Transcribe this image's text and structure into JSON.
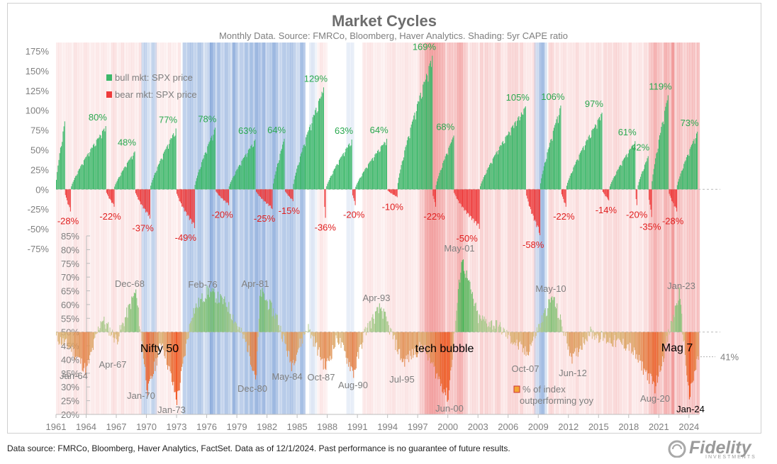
{
  "chart_data": {
    "type": "bar",
    "title": "Market Cycles",
    "subtitle": "Monthly Data.  Source:  FMRCo, Bloomberg, Haver Analytics.  Shading: 5yr CAPE ratio",
    "x_ticks": [
      "1961",
      "1964",
      "1967",
      "1970",
      "1973",
      "1976",
      "1979",
      "1982",
      "1985",
      "1988",
      "1991",
      "1994",
      "1997",
      "2000",
      "2003",
      "2006",
      "2009",
      "2012",
      "2015",
      "2018",
      "2021",
      "2024"
    ],
    "x_range": [
      1961,
      2025
    ],
    "upper_panel": {
      "y_ticks": [
        "175%",
        "150%",
        "125%",
        "100%",
        "75%",
        "50%",
        "25%",
        "0%",
        "-25%",
        "-50%",
        "-75%"
      ],
      "ylim": [
        -75,
        175
      ],
      "legend": [
        {
          "label": "bull mkt: SPX price",
          "color": "#3cb86a"
        },
        {
          "label": "bear mkt: SPX price",
          "color": "#ee3b3b"
        }
      ],
      "bull_markets": [
        {
          "start": 1961.0,
          "end": 1961.9,
          "peak": 86,
          "label": ""
        },
        {
          "start": 1962.5,
          "end": 1966.0,
          "peak": 80,
          "label": "80%"
        },
        {
          "start": 1966.8,
          "end": 1968.9,
          "peak": 48,
          "label": "48%"
        },
        {
          "start": 1970.4,
          "end": 1973.0,
          "peak": 77,
          "label": "77%"
        },
        {
          "start": 1974.8,
          "end": 1976.9,
          "peak": 78,
          "label": "78%"
        },
        {
          "start": 1978.2,
          "end": 1980.9,
          "peak": 63,
          "label": "63%"
        },
        {
          "start": 1982.6,
          "end": 1983.8,
          "peak": 64,
          "label": "64%"
        },
        {
          "start": 1984.6,
          "end": 1987.7,
          "peak": 129,
          "label": "129%"
        },
        {
          "start": 1987.9,
          "end": 1990.5,
          "peak": 63,
          "label": "63%"
        },
        {
          "start": 1990.8,
          "end": 1994.0,
          "peak": 64,
          "label": "64%"
        },
        {
          "start": 1995.0,
          "end": 1998.5,
          "peak": 169,
          "label": "169%"
        },
        {
          "start": 1998.8,
          "end": 2000.6,
          "peak": 68,
          "label": "68%"
        },
        {
          "start": 2003.2,
          "end": 2007.8,
          "peak": 105,
          "label": "105%"
        },
        {
          "start": 2009.2,
          "end": 2011.3,
          "peak": 106,
          "label": "106%"
        },
        {
          "start": 2011.8,
          "end": 2015.4,
          "peak": 97,
          "label": "97%"
        },
        {
          "start": 2016.1,
          "end": 2018.7,
          "peak": 61,
          "label": "61%"
        },
        {
          "start": 2018.9,
          "end": 2020.0,
          "peak": 42,
          "label": "42%"
        },
        {
          "start": 2020.3,
          "end": 2022.0,
          "peak": 119,
          "label": "119%"
        },
        {
          "start": 2022.8,
          "end": 2024.9,
          "peak": 73,
          "label": "73%"
        }
      ],
      "bear_markets": [
        {
          "start": 1961.9,
          "end": 1962.5,
          "trough": -28,
          "label": "-28%"
        },
        {
          "start": 1966.0,
          "end": 1966.8,
          "trough": -22,
          "label": "-22%"
        },
        {
          "start": 1968.9,
          "end": 1970.4,
          "trough": -37,
          "label": "-37%"
        },
        {
          "start": 1973.0,
          "end": 1974.8,
          "trough": -49,
          "label": "-49%"
        },
        {
          "start": 1976.9,
          "end": 1978.2,
          "trough": -20,
          "label": "-20%"
        },
        {
          "start": 1980.9,
          "end": 1982.6,
          "trough": -25,
          "label": "-25%"
        },
        {
          "start": 1983.8,
          "end": 1984.6,
          "trough": -15,
          "label": "-15%"
        },
        {
          "start": 1987.7,
          "end": 1987.9,
          "trough": -36,
          "label": "-36%"
        },
        {
          "start": 1990.5,
          "end": 1990.8,
          "trough": -20,
          "label": "-20%"
        },
        {
          "start": 1994.0,
          "end": 1995.0,
          "trough": -10,
          "label": "-10%"
        },
        {
          "start": 1998.5,
          "end": 1998.8,
          "trough": -22,
          "label": "-22%"
        },
        {
          "start": 2000.6,
          "end": 2003.2,
          "trough": -50,
          "label": "-50%"
        },
        {
          "start": 2007.8,
          "end": 2009.2,
          "trough": -58,
          "label": "-58%"
        },
        {
          "start": 2011.3,
          "end": 2011.8,
          "trough": -22,
          "label": "-22%"
        },
        {
          "start": 2015.4,
          "end": 2016.1,
          "trough": -14,
          "label": "-14%"
        },
        {
          "start": 2018.7,
          "end": 2018.9,
          "trough": -20,
          "label": "-20%"
        },
        {
          "start": 2020.0,
          "end": 2020.3,
          "trough": -35,
          "label": "-35%"
        },
        {
          "start": 2022.0,
          "end": 2022.8,
          "trough": -28,
          "label": "-28%"
        }
      ]
    },
    "lower_panel": {
      "y_ticks": [
        "85%",
        "80%",
        "75%",
        "70%",
        "65%",
        "60%",
        "55%",
        "50%",
        "45%",
        "40%",
        "35%",
        "30%",
        "25%",
        "20%"
      ],
      "ylim": [
        20,
        85
      ],
      "baseline": 50,
      "series_name": "% of index outperforming yoy",
      "legend_label": "% of index outperforming yoy",
      "last_value_label": "41%",
      "points": [
        {
          "x": 1961.0,
          "y": 48
        },
        {
          "x": 1962.5,
          "y": 44
        },
        {
          "x": 1964.0,
          "y": 36
        },
        {
          "x": 1965.5,
          "y": 55
        },
        {
          "x": 1967.0,
          "y": 47
        },
        {
          "x": 1968.9,
          "y": 65
        },
        {
          "x": 1970.1,
          "y": 28
        },
        {
          "x": 1971.5,
          "y": 47
        },
        {
          "x": 1973.0,
          "y": 25
        },
        {
          "x": 1974.5,
          "y": 57
        },
        {
          "x": 1976.1,
          "y": 65
        },
        {
          "x": 1978.0,
          "y": 60
        },
        {
          "x": 1980.0,
          "y": 45
        },
        {
          "x": 1980.9,
          "y": 33
        },
        {
          "x": 1981.3,
          "y": 65
        },
        {
          "x": 1983.0,
          "y": 55
        },
        {
          "x": 1984.4,
          "y": 38
        },
        {
          "x": 1986.0,
          "y": 52
        },
        {
          "x": 1987.8,
          "y": 37
        },
        {
          "x": 1989.0,
          "y": 48
        },
        {
          "x": 1990.6,
          "y": 35
        },
        {
          "x": 1991.7,
          "y": 50
        },
        {
          "x": 1993.3,
          "y": 59
        },
        {
          "x": 1995.5,
          "y": 39
        },
        {
          "x": 1997.5,
          "y": 45
        },
        {
          "x": 2000.0,
          "y": 26
        },
        {
          "x": 2001.35,
          "y": 77
        },
        {
          "x": 2003.0,
          "y": 55
        },
        {
          "x": 2005.0,
          "y": 52
        },
        {
          "x": 2007.8,
          "y": 42
        },
        {
          "x": 2010.4,
          "y": 63
        },
        {
          "x": 2012.4,
          "y": 40
        },
        {
          "x": 2014.0,
          "y": 50
        },
        {
          "x": 2016.0,
          "y": 47
        },
        {
          "x": 2018.0,
          "y": 45
        },
        {
          "x": 2020.6,
          "y": 30
        },
        {
          "x": 2023.0,
          "y": 64
        },
        {
          "x": 2024.0,
          "y": 26
        },
        {
          "x": 2024.9,
          "y": 41
        }
      ]
    },
    "annotations": [
      {
        "text": "Dec-68",
        "kind": "peak"
      },
      {
        "text": "Feb-76",
        "kind": "peak"
      },
      {
        "text": "Apr-81",
        "kind": "peak"
      },
      {
        "text": "Apr-93",
        "kind": "peak"
      },
      {
        "text": "May-01",
        "kind": "peak"
      },
      {
        "text": "May-10",
        "kind": "peak"
      },
      {
        "text": "Jan-23",
        "kind": "peak"
      },
      {
        "text": "Jan-64",
        "kind": "trough"
      },
      {
        "text": "Apr-67",
        "kind": "trough"
      },
      {
        "text": "Jan-70",
        "kind": "trough"
      },
      {
        "text": "Jan-73",
        "kind": "trough"
      },
      {
        "text": "Dec-80",
        "kind": "trough"
      },
      {
        "text": "May-84",
        "kind": "trough"
      },
      {
        "text": "Oct-87",
        "kind": "trough"
      },
      {
        "text": "Aug-90",
        "kind": "trough"
      },
      {
        "text": "Jul-95",
        "kind": "trough"
      },
      {
        "text": "Jun-00",
        "kind": "trough"
      },
      {
        "text": "Oct-07",
        "kind": "trough"
      },
      {
        "text": "Jun-12",
        "kind": "trough"
      },
      {
        "text": "Aug-20",
        "kind": "trough"
      },
      {
        "text": "Jan-24",
        "kind": "trough"
      },
      {
        "text": "Nifty 50",
        "kind": "era"
      },
      {
        "text": "tech bubble",
        "kind": "era"
      },
      {
        "text": "Mag 7",
        "kind": "era"
      }
    ],
    "shading_legend": "5yr CAPE ratio (blue = low, red = high)"
  },
  "footer": {
    "note": "Data source: FMRCo, Bloomberg, Haver Analytics, FactSet. Data as of 12/1/2024. Past performance is no guarantee of future results.",
    "logo_text": "Fidelity",
    "logo_sub": "INVESTMENTS"
  },
  "colors": {
    "bull": "#3cb86a",
    "bear": "#ee3b3b",
    "text_gray": "#7f7f7f",
    "title": "#6d6d6d"
  }
}
